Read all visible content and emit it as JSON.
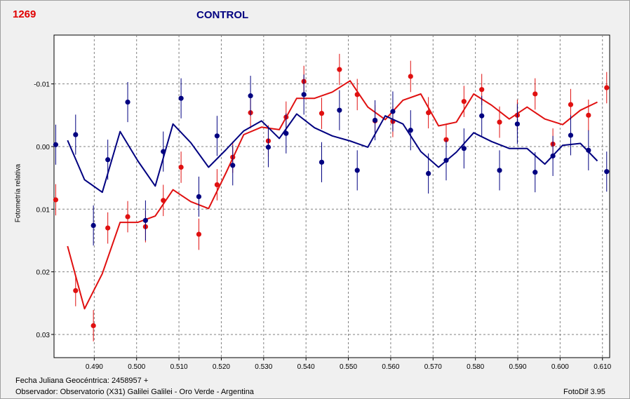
{
  "header": {
    "star_id": "1269",
    "title": "CONTROL"
  },
  "footer": {
    "line1": "Fecha Juliana Geocéntrica: 2458957 +",
    "line2": "Observador: Observatorio (X31) Galilei Galilei - Oro Verde - Argentina",
    "software": "FotoDif 3.95"
  },
  "colors": {
    "red": "#e01010",
    "blue": "#000080",
    "grid": "#808080"
  },
  "chart_data": {
    "type": "scatter",
    "ylabel": "Fotometría relativa",
    "xlim": [
      0.4805,
      0.6117
    ],
    "ylim": [
      0.0337,
      -0.0178
    ],
    "y_inverted": true,
    "grid": true,
    "x_ticks": [
      "0.490",
      "0.500",
      "0.510",
      "0.520",
      "0.530",
      "0.540",
      "0.550",
      "0.560",
      "0.570",
      "0.580",
      "0.590",
      "0.600",
      "0.610"
    ],
    "y_ticks": [
      "-0.01",
      "0.00",
      "0.01",
      "0.02",
      "0.03"
    ],
    "series": [
      {
        "color": "#e01010",
        "err": 0.0025,
        "points": [
          [
            0.4809,
            0.0085
          ],
          [
            0.4856,
            0.023
          ],
          [
            0.4898,
            0.0286
          ],
          [
            0.4932,
            0.013
          ],
          [
            0.4979,
            0.0112
          ],
          [
            0.5021,
            0.0128
          ],
          [
            0.5063,
            0.0086
          ],
          [
            0.5105,
            0.0033
          ],
          [
            0.5147,
            0.014
          ],
          [
            0.519,
            0.0061
          ],
          [
            0.5227,
            0.0017
          ],
          [
            0.5269,
            -0.0054
          ],
          [
            0.5311,
            -0.0009
          ],
          [
            0.5353,
            -0.0047
          ],
          [
            0.5395,
            -0.0104
          ],
          [
            0.5437,
            -0.0053
          ],
          [
            0.5479,
            -0.0123
          ],
          [
            0.5521,
            -0.0083
          ],
          [
            0.5563,
            -0.0041
          ],
          [
            0.5605,
            -0.004
          ],
          [
            0.5647,
            -0.0112
          ],
          [
            0.5689,
            -0.0054
          ],
          [
            0.5731,
            -0.0011
          ],
          [
            0.5773,
            -0.0072
          ],
          [
            0.5815,
            -0.0091
          ],
          [
            0.5857,
            -0.0039
          ],
          [
            0.5899,
            -0.005
          ],
          [
            0.5941,
            -0.0084
          ],
          [
            0.5983,
            -0.0004
          ],
          [
            0.6025,
            -0.0067
          ],
          [
            0.6067,
            -0.005
          ],
          [
            0.611,
            -0.0094
          ]
        ],
        "trend": [
          [
            0.4837,
            0.0159
          ],
          [
            0.4877,
            0.0259
          ],
          [
            0.4919,
            0.0203
          ],
          [
            0.4961,
            0.0121
          ],
          [
            0.5003,
            0.0121
          ],
          [
            0.5044,
            0.0111
          ],
          [
            0.5086,
            0.0069
          ],
          [
            0.5128,
            0.0088
          ],
          [
            0.517,
            0.0099
          ],
          [
            0.5211,
            0.0042
          ],
          [
            0.5253,
            -0.0019
          ],
          [
            0.5295,
            -0.0031
          ],
          [
            0.5337,
            -0.0027
          ],
          [
            0.5378,
            -0.0077
          ],
          [
            0.542,
            -0.0077
          ],
          [
            0.5462,
            -0.0087
          ],
          [
            0.5504,
            -0.0105
          ],
          [
            0.5546,
            -0.0063
          ],
          [
            0.5587,
            -0.0043
          ],
          [
            0.5629,
            -0.0074
          ],
          [
            0.5671,
            -0.0084
          ],
          [
            0.5713,
            -0.0033
          ],
          [
            0.5755,
            -0.0039
          ],
          [
            0.5796,
            -0.0084
          ],
          [
            0.5838,
            -0.0066
          ],
          [
            0.588,
            -0.0044
          ],
          [
            0.5922,
            -0.0063
          ],
          [
            0.5964,
            -0.0044
          ],
          [
            0.6006,
            -0.0035
          ],
          [
            0.6048,
            -0.0058
          ],
          [
            0.6088,
            -0.0071
          ]
        ]
      },
      {
        "color": "#000080",
        "err": 0.0032,
        "points": [
          [
            0.4809,
            -0.0003
          ],
          [
            0.4856,
            -0.0019
          ],
          [
            0.4898,
            0.0126
          ],
          [
            0.4932,
            0.0021
          ],
          [
            0.4979,
            -0.0071
          ],
          [
            0.5021,
            0.0118
          ],
          [
            0.5063,
            0.0008
          ],
          [
            0.5105,
            -0.0077
          ],
          [
            0.5147,
            0.008
          ],
          [
            0.519,
            -0.0017
          ],
          [
            0.5227,
            0.003
          ],
          [
            0.5269,
            -0.0081
          ],
          [
            0.5311,
            0.0001
          ],
          [
            0.5353,
            -0.0021
          ],
          [
            0.5395,
            -0.0083
          ],
          [
            0.5437,
            0.0025
          ],
          [
            0.5479,
            -0.0058
          ],
          [
            0.5521,
            0.0038
          ],
          [
            0.5563,
            -0.0042
          ],
          [
            0.5605,
            -0.0056
          ],
          [
            0.5647,
            -0.0026
          ],
          [
            0.5689,
            0.0043
          ],
          [
            0.5731,
            0.0022
          ],
          [
            0.5773,
            0.0003
          ],
          [
            0.5815,
            -0.0049
          ],
          [
            0.5857,
            0.0038
          ],
          [
            0.5899,
            -0.0036
          ],
          [
            0.5941,
            0.0041
          ],
          [
            0.5983,
            0.0015
          ],
          [
            0.6025,
            -0.0018
          ],
          [
            0.6067,
            0.0006
          ],
          [
            0.611,
            0.004
          ]
        ],
        "trend": [
          [
            0.4837,
            -0.001
          ],
          [
            0.4877,
            0.0053
          ],
          [
            0.4919,
            0.0073
          ],
          [
            0.4961,
            -0.0024
          ],
          [
            0.5003,
            0.0023
          ],
          [
            0.5044,
            0.0063
          ],
          [
            0.5086,
            -0.0036
          ],
          [
            0.5128,
            -0.0006
          ],
          [
            0.517,
            0.0033
          ],
          [
            0.5211,
            0.0005
          ],
          [
            0.5253,
            -0.0025
          ],
          [
            0.5295,
            -0.0041
          ],
          [
            0.5337,
            -0.0013
          ],
          [
            0.5378,
            -0.0052
          ],
          [
            0.542,
            -0.003
          ],
          [
            0.5462,
            -0.0017
          ],
          [
            0.5504,
            -0.0009
          ],
          [
            0.5546,
            0.0001
          ],
          [
            0.5587,
            -0.0049
          ],
          [
            0.5629,
            -0.0036
          ],
          [
            0.5671,
            0.0008
          ],
          [
            0.5713,
            0.0033
          ],
          [
            0.5755,
            0.0009
          ],
          [
            0.5796,
            -0.0022
          ],
          [
            0.5838,
            -0.0008
          ],
          [
            0.588,
            0.0003
          ],
          [
            0.5922,
            0.0003
          ],
          [
            0.5964,
            0.0028
          ],
          [
            0.6006,
            -0.0002
          ],
          [
            0.6048,
            -0.0005
          ],
          [
            0.6088,
            0.0023
          ]
        ]
      }
    ]
  }
}
